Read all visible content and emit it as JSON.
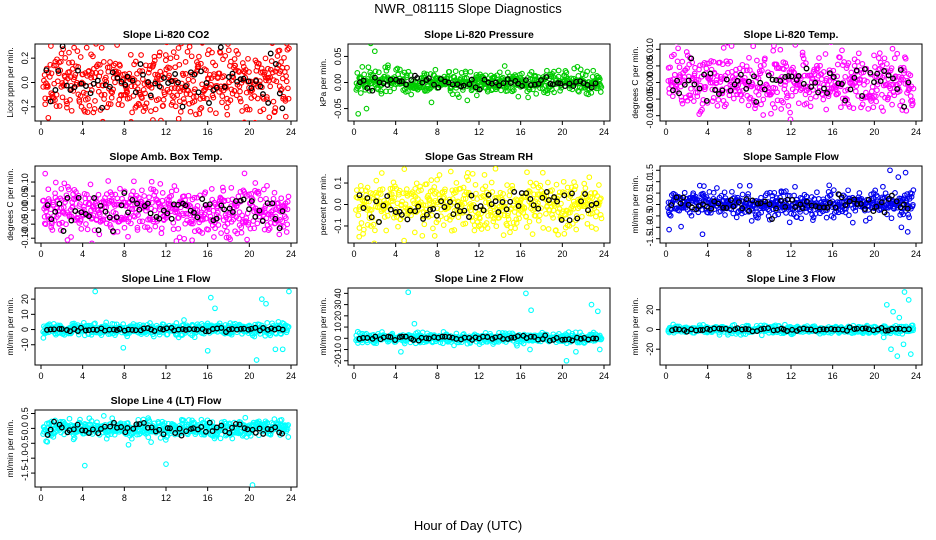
{
  "page_title": "NWR_081115  Slope Diagnostics",
  "x_axis_title": "Hour of Day (UTC)",
  "colors": {
    "black": "#000000"
  },
  "chart_data": [
    {
      "type": "scatter",
      "title": "Slope Li-820 CO2",
      "ylabel": "Licor ppm per min.",
      "color": "#ff0000",
      "xlim": [
        0,
        24
      ],
      "ylim": [
        -0.3,
        0.3
      ],
      "x_ticks": [
        0,
        4,
        8,
        12,
        16,
        20,
        24
      ],
      "y_ticks": [
        {
          "v": -0.2,
          "label": "-0.2"
        },
        {
          "v": 0,
          "label": "0.0"
        },
        {
          "v": 0.2,
          "label": "0.2"
        }
      ],
      "center": 0,
      "spread": 0.18,
      "black_spread": 0.1,
      "outliers": [
        [
          23.6,
          0.32
        ],
        [
          23.8,
          0.28
        ],
        [
          23.5,
          -0.28
        ],
        [
          0.7,
          -0.29
        ]
      ]
    },
    {
      "type": "scatter",
      "title": "Slope Li-820 Pressure",
      "ylabel": "kPa per min.",
      "color": "#00cc00",
      "xlim": [
        0,
        24
      ],
      "ylim": [
        -0.07,
        0.07
      ],
      "x_ticks": [
        0,
        4,
        8,
        12,
        16,
        20,
        24
      ],
      "y_ticks": [
        {
          "v": -0.05,
          "label": "-0.05"
        },
        {
          "v": 0,
          "label": "0.00"
        },
        {
          "v": 0.05,
          "label": "0.05"
        }
      ],
      "center": 0,
      "spread": 0.012,
      "black_spread": 0.006,
      "outliers": [
        [
          1.6,
          0.075
        ],
        [
          2.0,
          0.06
        ],
        [
          0.4,
          -0.06
        ],
        [
          1.2,
          -0.05
        ],
        [
          0.8,
          0.03
        ]
      ]
    },
    {
      "type": "scatter",
      "title": "Slope Li-820 Temp.",
      "ylabel": "degrees C per min.",
      "color": "#ff00ff",
      "xlim": [
        0,
        24
      ],
      "ylim": [
        -0.011,
        0.011
      ],
      "x_ticks": [
        0,
        4,
        8,
        12,
        16,
        20,
        24
      ],
      "y_ticks": [
        {
          "v": -0.01,
          "label": "-0.010"
        },
        {
          "v": -0.005,
          "label": "-0.005"
        },
        {
          "v": 0,
          "label": "0.000"
        },
        {
          "v": 0.005,
          "label": "0.005"
        },
        {
          "v": 0.01,
          "label": "0.010"
        }
      ],
      "center": 0,
      "spread": 0.0055,
      "black_spread": 0.003,
      "outliers": [
        [
          6.3,
          0.011
        ]
      ]
    },
    {
      "type": "scatter",
      "title": "Slope Amb. Box Temp.",
      "ylabel": "degrees C per min.",
      "color": "#ff00ff",
      "xlim": [
        0,
        24
      ],
      "ylim": [
        -0.11,
        0.15
      ],
      "x_ticks": [
        0,
        4,
        8,
        12,
        16,
        20,
        24
      ],
      "y_ticks": [
        {
          "v": -0.1,
          "label": "-0.10"
        },
        {
          "v": -0.05,
          "label": "-0.05"
        },
        {
          "v": 0,
          "label": "0.00"
        },
        {
          "v": 0.05,
          "label": "0.05"
        },
        {
          "v": 0.1,
          "label": "0.10"
        }
      ],
      "center": 0,
      "spread": 0.05,
      "black_spread": 0.03,
      "outliers": [
        [
          13.0,
          -0.11
        ],
        [
          0.4,
          0.13
        ]
      ]
    },
    {
      "type": "scatter",
      "title": "Slope Gas Stream RH",
      "ylabel": "percent per min.",
      "color": "#ffff00",
      "xlim": [
        0,
        24
      ],
      "ylim": [
        -0.17,
        0.17
      ],
      "x_ticks": [
        0,
        4,
        8,
        12,
        16,
        20,
        24
      ],
      "y_ticks": [
        {
          "v": -0.1,
          "label": "-0.1"
        },
        {
          "v": 0,
          "label": "0.0"
        },
        {
          "v": 0.1,
          "label": "0.1"
        }
      ],
      "center": 0,
      "spread": 0.07,
      "black_spread": 0.04,
      "outliers": [
        [
          0.5,
          -0.15
        ]
      ]
    },
    {
      "type": "scatter",
      "title": "Slope Sample Flow",
      "ylabel": "ml/min per min.",
      "color": "#0000ee",
      "xlim": [
        0,
        24
      ],
      "ylim": [
        -1.6,
        1.6
      ],
      "x_ticks": [
        0,
        4,
        8,
        12,
        16,
        20,
        24
      ],
      "y_ticks": [
        {
          "v": -1.5,
          "label": "-1.5"
        },
        {
          "v": -1,
          "label": "-1.0"
        },
        {
          "v": -0.5,
          "label": "-0.5"
        },
        {
          "v": 0,
          "label": "0.0"
        },
        {
          "v": 0.5,
          "label": "0.5"
        },
        {
          "v": 1,
          "label": "1.0"
        },
        {
          "v": 1.5,
          "label": "1.5"
        }
      ],
      "center": 0,
      "spread": 0.32,
      "black_spread": 0.2,
      "outliers": [
        [
          21.5,
          1.5
        ],
        [
          22.3,
          1.2
        ],
        [
          23.0,
          1.4
        ],
        [
          22.6,
          -1.0
        ],
        [
          23.2,
          -1.2
        ],
        [
          0.3,
          -1.1
        ],
        [
          3.5,
          -1.3
        ]
      ]
    },
    {
      "type": "scatter",
      "title": "Slope Line 1 Flow",
      "ylabel": "ml/min per min.",
      "color": "#00ffff",
      "xlim": [
        0,
        24
      ],
      "ylim": [
        -22,
        26
      ],
      "x_ticks": [
        0,
        4,
        8,
        12,
        16,
        20,
        24
      ],
      "y_ticks": [
        {
          "v": -10,
          "label": "-10"
        },
        {
          "v": 0,
          "label": "0"
        },
        {
          "v": 10,
          "label": "10"
        },
        {
          "v": 20,
          "label": "20"
        }
      ],
      "center": 0,
      "spread": 2.2,
      "black_spread": 0.6,
      "outliers": [
        [
          5.2,
          25
        ],
        [
          16.3,
          21
        ],
        [
          16.7,
          14
        ],
        [
          21.2,
          20
        ],
        [
          21.6,
          17
        ],
        [
          22.5,
          -13
        ],
        [
          23.2,
          -13
        ],
        [
          23.8,
          25
        ],
        [
          20.7,
          -20
        ],
        [
          7.9,
          -12
        ],
        [
          16.0,
          -14
        ]
      ]
    },
    {
      "type": "scatter",
      "title": "Slope Line 2 Flow",
      "ylabel": "ml/min per min.",
      "color": "#00ffff",
      "xlim": [
        0,
        24
      ],
      "ylim": [
        -22,
        43
      ],
      "x_ticks": [
        0,
        4,
        8,
        12,
        16,
        20,
        24
      ],
      "y_ticks": [
        {
          "v": -20,
          "label": "-20"
        },
        {
          "v": -10,
          "label": "-10"
        },
        {
          "v": 0,
          "label": "0"
        },
        {
          "v": 10,
          "label": "10"
        },
        {
          "v": 20,
          "label": "20"
        },
        {
          "v": 30,
          "label": "30"
        },
        {
          "v": 40,
          "label": "40"
        }
      ],
      "center": 0,
      "spread": 2.5,
      "black_spread": 1,
      "outliers": [
        [
          5.2,
          41
        ],
        [
          16.5,
          40
        ],
        [
          17.0,
          25
        ],
        [
          5.8,
          13
        ],
        [
          16.9,
          -10
        ],
        [
          21.3,
          -12
        ],
        [
          22.8,
          30
        ],
        [
          23.4,
          24
        ],
        [
          20.4,
          -20
        ],
        [
          23.6,
          -10
        ],
        [
          4.5,
          -12
        ]
      ]
    },
    {
      "type": "scatter",
      "title": "Slope Line 3 Flow",
      "ylabel": "ml/min per min.",
      "color": "#00ffff",
      "xlim": [
        0,
        24
      ],
      "ylim": [
        -34,
        40
      ],
      "x_ticks": [
        0,
        4,
        8,
        12,
        16,
        20,
        24
      ],
      "y_ticks": [
        {
          "v": -20,
          "label": "-20"
        },
        {
          "v": 0,
          "label": "0"
        },
        {
          "v": 20,
          "label": "20"
        }
      ],
      "center": 0,
      "spread": 2.2,
      "black_spread": 0.8,
      "outliers": [
        [
          21.2,
          25
        ],
        [
          21.8,
          18
        ],
        [
          22.4,
          12
        ],
        [
          22.9,
          38
        ],
        [
          23.3,
          30
        ],
        [
          21.6,
          -20
        ],
        [
          22.2,
          -27
        ],
        [
          22.8,
          -15
        ],
        [
          20.9,
          -8
        ],
        [
          23.5,
          -25
        ]
      ]
    },
    {
      "type": "scatter",
      "title": "Slope Line 4 (LT) Flow",
      "ylabel": "ml/min per min.",
      "color": "#00ffff",
      "xlim": [
        0,
        24
      ],
      "ylim": [
        -1.9,
        0.55
      ],
      "x_ticks": [
        0,
        4,
        8,
        12,
        16,
        20,
        24
      ],
      "y_ticks": [
        {
          "v": -1.5,
          "label": "-1.5"
        },
        {
          "v": -1,
          "label": "-1.0"
        },
        {
          "v": -0.5,
          "label": "-0.5"
        },
        {
          "v": 0,
          "label": "0.0"
        },
        {
          "v": 0.5,
          "label": "0.5"
        }
      ],
      "center": 0,
      "spread": 0.16,
      "black_spread": 0.1,
      "outliers": [
        [
          4.2,
          -1.25
        ],
        [
          12.0,
          -1.2
        ],
        [
          20.3,
          -1.9
        ],
        [
          0.6,
          -0.45
        ],
        [
          8.4,
          -0.55
        ]
      ]
    }
  ]
}
